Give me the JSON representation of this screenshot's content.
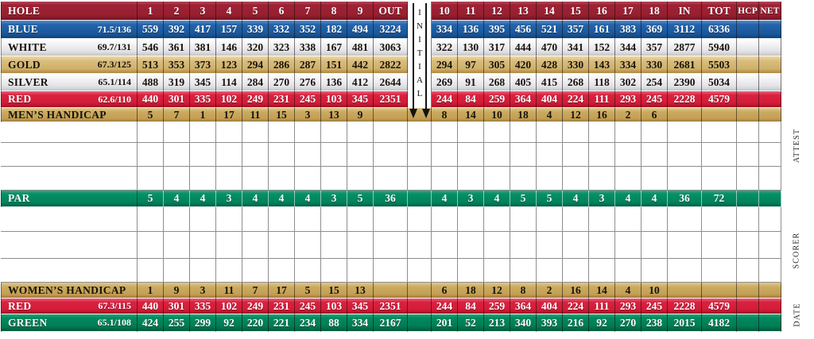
{
  "table": {
    "columns": {
      "label_header": "HOLE",
      "front_holes": [
        "1",
        "2",
        "3",
        "4",
        "5",
        "6",
        "7",
        "8",
        "9"
      ],
      "out": "OUT",
      "back_holes": [
        "10",
        "11",
        "12",
        "13",
        "14",
        "15",
        "16",
        "17",
        "18"
      ],
      "in": "IN",
      "total": "TOT",
      "hcp": "HCP",
      "net": "NET"
    },
    "rows": [
      {
        "kind": "header",
        "style": "header",
        "label": "HOLE",
        "front": [
          "1",
          "2",
          "3",
          "4",
          "5",
          "6",
          "7",
          "8",
          "9"
        ],
        "out": "OUT",
        "back": [
          "10",
          "11",
          "12",
          "13",
          "14",
          "15",
          "16",
          "17",
          "18"
        ],
        "in": "IN",
        "tot": "TOT",
        "hcp": "HCP",
        "net": "NET"
      },
      {
        "kind": "tee",
        "style": "blue",
        "label": "BLUE",
        "rating": "71.5/136",
        "front": [
          559,
          392,
          417,
          157,
          339,
          332,
          352,
          182,
          494
        ],
        "out": 3224,
        "back": [
          334,
          136,
          395,
          456,
          521,
          357,
          161,
          383,
          369
        ],
        "in": 3112,
        "tot": 6336,
        "hcp": "",
        "net": ""
      },
      {
        "kind": "tee",
        "style": "white",
        "label": "WHITE",
        "rating": "69.7/131",
        "front": [
          546,
          361,
          381,
          146,
          320,
          323,
          338,
          167,
          481
        ],
        "out": 3063,
        "back": [
          322,
          130,
          317,
          444,
          470,
          341,
          152,
          344,
          357
        ],
        "in": 2877,
        "tot": 5940,
        "hcp": "",
        "net": ""
      },
      {
        "kind": "tee",
        "style": "gold",
        "label": "GOLD",
        "rating": "67.3/125",
        "front": [
          513,
          353,
          373,
          123,
          294,
          286,
          287,
          151,
          442
        ],
        "out": 2822,
        "back": [
          294,
          97,
          305,
          420,
          428,
          330,
          143,
          334,
          330
        ],
        "in": 2681,
        "tot": 5503,
        "hcp": "",
        "net": ""
      },
      {
        "kind": "tee",
        "style": "silver",
        "label": "SILVER",
        "rating": "65.1/114",
        "front": [
          488,
          319,
          345,
          114,
          284,
          270,
          276,
          136,
          412
        ],
        "out": 2644,
        "back": [
          269,
          91,
          268,
          405,
          415,
          268,
          118,
          302,
          254
        ],
        "in": 2390,
        "tot": 5034,
        "hcp": "",
        "net": ""
      },
      {
        "kind": "tee",
        "style": "red",
        "label": "RED",
        "rating": "62.6/110",
        "front": [
          440,
          301,
          335,
          102,
          249,
          231,
          245,
          103,
          345
        ],
        "out": 2351,
        "back": [
          244,
          84,
          259,
          364,
          404,
          224,
          111,
          293,
          245
        ],
        "in": 2228,
        "tot": 4579,
        "hcp": "",
        "net": ""
      },
      {
        "kind": "handicap",
        "style": "tan",
        "label": "MEN’S HANDICAP",
        "front": [
          5,
          7,
          1,
          17,
          11,
          15,
          3,
          13,
          9
        ],
        "out": "",
        "back": [
          8,
          14,
          10,
          18,
          4,
          12,
          16,
          2,
          6
        ],
        "in": "",
        "tot": "",
        "hcp": "",
        "net": ""
      },
      {
        "kind": "empty"
      },
      {
        "kind": "empty"
      },
      {
        "kind": "empty"
      },
      {
        "kind": "par",
        "style": "green",
        "label": "PAR",
        "front": [
          5,
          4,
          4,
          3,
          4,
          4,
          4,
          3,
          5
        ],
        "out": 36,
        "back": [
          4,
          3,
          4,
          5,
          5,
          4,
          3,
          4,
          4
        ],
        "in": 36,
        "tot": 72,
        "hcp": "",
        "net": ""
      },
      {
        "kind": "empty"
      },
      {
        "kind": "empty"
      },
      {
        "kind": "empty"
      },
      {
        "kind": "handicap",
        "style": "tan",
        "label": "WOMEN’S HANDICAP",
        "front": [
          1,
          9,
          3,
          11,
          7,
          17,
          5,
          15,
          13
        ],
        "out": "",
        "back": [
          6,
          18,
          12,
          8,
          2,
          16,
          14,
          4,
          10
        ],
        "in": "",
        "tot": "",
        "hcp": "",
        "net": ""
      },
      {
        "kind": "tee",
        "style": "red",
        "label": "RED",
        "rating": "67.3/115",
        "front": [
          440,
          301,
          335,
          102,
          249,
          231,
          245,
          103,
          345
        ],
        "out": 2351,
        "back": [
          244,
          84,
          259,
          364,
          404,
          224,
          111,
          293,
          245
        ],
        "in": 2228,
        "tot": 4579,
        "hcp": "",
        "net": ""
      },
      {
        "kind": "tee",
        "style": "darkgreen",
        "label": "GREEN",
        "rating": "65.1/108",
        "front": [
          424,
          255,
          299,
          92,
          220,
          221,
          234,
          88,
          334
        ],
        "out": 2167,
        "back": [
          201,
          52,
          213,
          340,
          393,
          216,
          92,
          270,
          238
        ],
        "in": 2015,
        "tot": 4182,
        "hcp": "",
        "net": ""
      }
    ]
  },
  "initial_column": {
    "letters": [
      "I",
      "N",
      "I",
      "T",
      "I",
      "A",
      "L"
    ],
    "icon": "down-arrow"
  },
  "margin_labels": [
    "ATTEST",
    "SCORER",
    "DATE"
  ],
  "colors": {
    "header_maroon": "#9B1C30",
    "blue_tee": "#1A5AA4",
    "white_silver_tee": "#E7E7EB",
    "gold_tee": "#D5B877",
    "red_tee": "#D61F3B",
    "handicap_tan": "#C5A159",
    "par_green": "#00845B",
    "green_tee": "#007A52",
    "gridline_gray": "#8E8E8E"
  }
}
